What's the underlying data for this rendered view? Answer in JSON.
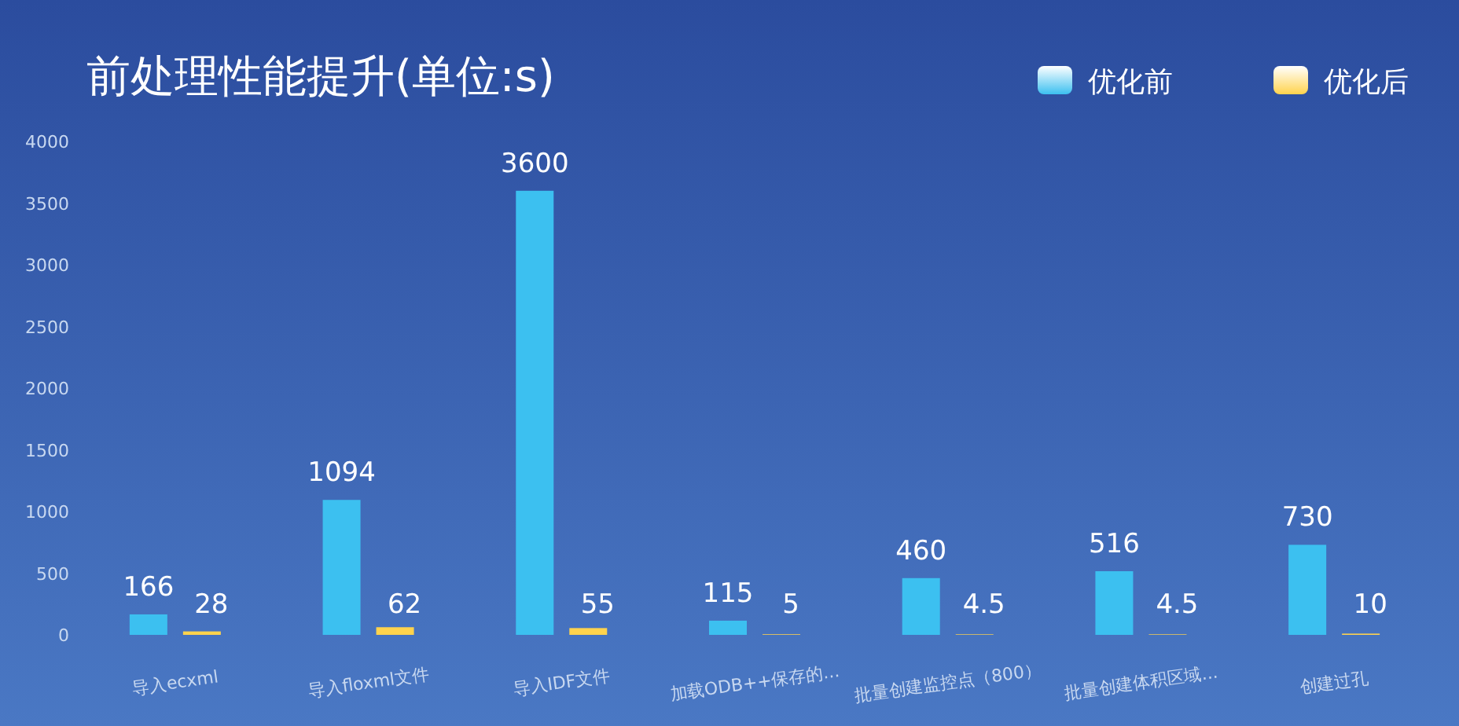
{
  "chart_data": {
    "type": "bar",
    "title": "前处理性能提升(单位:s)",
    "categories": [
      "导入ecxml",
      "导入floxml文件",
      "导入IDF文件",
      "加载ODB++保存的...",
      "批量创建监控点（800）",
      "批量创建体积区域...",
      "创建过孔"
    ],
    "series": [
      {
        "name": "优化前",
        "color": "#3cc0f0",
        "values": [
          166,
          1094,
          3600,
          115,
          460,
          516,
          730
        ]
      },
      {
        "name": "优化后",
        "color": "#ffd34d",
        "values": [
          28,
          62,
          55,
          5,
          4.5,
          4.5,
          10
        ]
      }
    ],
    "ylim": [
      0,
      4000
    ],
    "yticks": [
      0,
      500,
      1000,
      1500,
      2000,
      2500,
      3000,
      3500,
      4000
    ],
    "data_labels": true,
    "legend": "top right",
    "grid": false
  }
}
